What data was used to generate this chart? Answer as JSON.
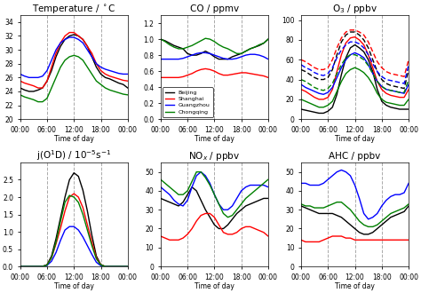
{
  "titles": [
    "Temperature / $\\degree$C",
    "CO / ppmv",
    "O$_3$ / ppbv",
    "j(O$^1$D) / 10$^{-5}$s$^{-1}$",
    "NO$_x$ / ppbv",
    "AHC / ppbv"
  ],
  "colors": [
    "black",
    "red",
    "blue",
    "green"
  ],
  "cities": [
    "Beijing",
    "Shanghai",
    "Guangzhou",
    "Chongqing"
  ],
  "time_points": 25,
  "xlim": [
    0,
    24
  ],
  "xticks": [
    0,
    6,
    12,
    18,
    24
  ],
  "xticklabels": [
    "00:00",
    "06:00",
    "12:00",
    "18:00",
    "00:00"
  ],
  "vlines": [
    6,
    12,
    18
  ],
  "temp": {
    "ylim": [
      20,
      35
    ],
    "yticks": [
      20,
      22,
      24,
      26,
      28,
      30,
      32,
      34
    ],
    "beijing": [
      24.5,
      24.2,
      24.0,
      24.0,
      24.2,
      24.5,
      25.5,
      27.0,
      29.0,
      30.5,
      31.5,
      32.0,
      32.2,
      32.0,
      31.5,
      30.5,
      29.0,
      27.5,
      26.5,
      26.0,
      25.8,
      25.5,
      25.2,
      25.0,
      24.5
    ],
    "shanghai": [
      25.5,
      25.2,
      25.0,
      24.8,
      24.5,
      24.5,
      25.5,
      27.5,
      29.5,
      31.0,
      32.0,
      32.5,
      32.5,
      32.0,
      31.5,
      30.5,
      29.5,
      28.0,
      27.0,
      26.5,
      26.2,
      26.0,
      25.8,
      25.6,
      25.5
    ],
    "guangzhou": [
      26.5,
      26.2,
      26.0,
      26.0,
      26.0,
      26.2,
      27.0,
      28.5,
      30.0,
      31.0,
      31.5,
      31.8,
      31.8,
      31.5,
      31.0,
      30.0,
      29.0,
      28.0,
      27.5,
      27.2,
      27.0,
      26.8,
      26.6,
      26.5,
      26.5
    ],
    "chongqing": [
      23.5,
      23.2,
      23.0,
      22.8,
      22.5,
      22.5,
      23.0,
      24.5,
      26.0,
      27.5,
      28.5,
      29.0,
      29.2,
      29.0,
      28.5,
      27.5,
      26.5,
      25.5,
      25.0,
      24.5,
      24.2,
      24.0,
      23.8,
      23.6,
      23.5
    ]
  },
  "co": {
    "ylim": [
      0.0,
      1.3
    ],
    "yticks": [
      0.0,
      0.2,
      0.4,
      0.6,
      0.8,
      1.0,
      1.2
    ],
    "beijing": [
      1.0,
      0.98,
      0.95,
      0.92,
      0.9,
      0.88,
      0.82,
      0.8,
      0.8,
      0.82,
      0.85,
      0.82,
      0.78,
      0.75,
      0.75,
      0.75,
      0.78,
      0.8,
      0.82,
      0.85,
      0.88,
      0.9,
      0.92,
      0.95,
      1.0
    ],
    "shanghai": [
      0.52,
      0.52,
      0.52,
      0.52,
      0.52,
      0.53,
      0.55,
      0.57,
      0.6,
      0.62,
      0.63,
      0.62,
      0.6,
      0.57,
      0.55,
      0.55,
      0.56,
      0.57,
      0.58,
      0.58,
      0.57,
      0.56,
      0.55,
      0.54,
      0.52
    ],
    "guangzhou": [
      0.75,
      0.75,
      0.75,
      0.75,
      0.75,
      0.76,
      0.78,
      0.8,
      0.82,
      0.83,
      0.83,
      0.82,
      0.8,
      0.78,
      0.76,
      0.75,
      0.75,
      0.76,
      0.78,
      0.8,
      0.81,
      0.81,
      0.8,
      0.78,
      0.75
    ],
    "chongqing": [
      1.0,
      0.97,
      0.93,
      0.9,
      0.88,
      0.88,
      0.9,
      0.92,
      0.95,
      0.98,
      1.01,
      1.0,
      0.97,
      0.93,
      0.9,
      0.88,
      0.85,
      0.82,
      0.82,
      0.85,
      0.88,
      0.9,
      0.93,
      0.95,
      1.0
    ]
  },
  "o3": {
    "ylim": [
      0,
      105
    ],
    "yticks": [
      0,
      20,
      40,
      60,
      80,
      100
    ],
    "beijing_solid": [
      10,
      9,
      8,
      7,
      6,
      6,
      8,
      12,
      25,
      45,
      62,
      72,
      75,
      72,
      68,
      60,
      48,
      30,
      18,
      14,
      12,
      11,
      10,
      10,
      10
    ],
    "beijing_dashed": [
      50,
      48,
      45,
      42,
      40,
      40,
      42,
      50,
      65,
      78,
      85,
      88,
      88,
      85,
      80,
      72,
      60,
      48,
      40,
      36,
      34,
      33,
      32,
      31,
      50
    ],
    "shanghai_solid": [
      30,
      28,
      25,
      22,
      20,
      20,
      22,
      30,
      48,
      65,
      77,
      82,
      83,
      80,
      75,
      65,
      52,
      38,
      30,
      26,
      24,
      23,
      22,
      22,
      30
    ],
    "shanghai_dashed": [
      60,
      58,
      55,
      52,
      50,
      50,
      52,
      60,
      72,
      82,
      88,
      90,
      90,
      88,
      85,
      78,
      68,
      58,
      52,
      48,
      46,
      45,
      44,
      43,
      60
    ],
    "guangzhou_solid": [
      35,
      32,
      30,
      28,
      26,
      25,
      27,
      32,
      42,
      52,
      60,
      65,
      67,
      65,
      62,
      55,
      46,
      38,
      33,
      30,
      29,
      28,
      27,
      26,
      35
    ],
    "guangzhou_dashed": [
      55,
      52,
      50,
      47,
      45,
      44,
      46,
      52,
      62,
      70,
      75,
      78,
      78,
      76,
      72,
      65,
      56,
      48,
      43,
      40,
      39,
      38,
      37,
      36,
      55
    ],
    "chongqing_solid": [
      20,
      18,
      16,
      14,
      12,
      12,
      14,
      18,
      28,
      38,
      46,
      50,
      52,
      50,
      47,
      42,
      35,
      26,
      20,
      17,
      16,
      15,
      14,
      14,
      20
    ],
    "chongqing_dashed": [
      40,
      38,
      35,
      32,
      30,
      29,
      31,
      36,
      46,
      55,
      62,
      65,
      65,
      63,
      60,
      54,
      46,
      38,
      33,
      30,
      29,
      28,
      27,
      27,
      40
    ]
  },
  "jO1D": {
    "ylim": [
      0.0,
      3.0
    ],
    "yticks": [
      0.0,
      0.5,
      1.0,
      1.5,
      2.0,
      2.5
    ],
    "beijing": [
      0,
      0,
      0,
      0,
      0,
      0,
      0.05,
      0.3,
      0.8,
      1.4,
      2.0,
      2.5,
      2.7,
      2.6,
      2.2,
      1.6,
      0.9,
      0.3,
      0.05,
      0,
      0,
      0,
      0,
      0,
      0
    ],
    "shanghai": [
      0,
      0,
      0,
      0,
      0,
      0,
      0.04,
      0.25,
      0.65,
      1.1,
      1.6,
      2.0,
      2.1,
      2.0,
      1.7,
      1.2,
      0.7,
      0.25,
      0.04,
      0,
      0,
      0,
      0,
      0,
      0
    ],
    "guangzhou": [
      0,
      0,
      0,
      0,
      0,
      0,
      0.03,
      0.15,
      0.4,
      0.75,
      1.05,
      1.15,
      1.15,
      1.05,
      0.85,
      0.6,
      0.35,
      0.12,
      0.02,
      0,
      0,
      0,
      0,
      0,
      0
    ],
    "chongqing": [
      0,
      0,
      0,
      0,
      0,
      0,
      0.04,
      0.25,
      0.7,
      1.3,
      1.85,
      2.05,
      2.0,
      1.85,
      1.5,
      1.05,
      0.6,
      0.22,
      0.04,
      0,
      0,
      0,
      0,
      0,
      0
    ]
  },
  "nox": {
    "ylim": [
      0,
      55
    ],
    "yticks": [
      0,
      10,
      20,
      30,
      40,
      50
    ],
    "beijing": [
      36,
      35,
      34,
      33,
      32,
      34,
      38,
      42,
      40,
      35,
      30,
      26,
      22,
      20,
      20,
      22,
      25,
      28,
      30,
      32,
      33,
      34,
      35,
      36,
      36
    ],
    "shanghai": [
      16,
      15,
      14,
      14,
      14,
      15,
      17,
      20,
      24,
      27,
      28,
      28,
      26,
      22,
      18,
      17,
      17,
      18,
      20,
      21,
      21,
      20,
      19,
      18,
      16
    ],
    "guangzhou": [
      42,
      40,
      38,
      35,
      33,
      32,
      35,
      42,
      48,
      50,
      48,
      44,
      38,
      33,
      30,
      30,
      32,
      36,
      40,
      42,
      43,
      43,
      43,
      43,
      42
    ],
    "chongqing": [
      46,
      44,
      42,
      40,
      38,
      38,
      40,
      45,
      50,
      50,
      47,
      43,
      38,
      33,
      28,
      26,
      27,
      30,
      33,
      36,
      38,
      40,
      42,
      44,
      46
    ]
  },
  "ahc": {
    "ylim": [
      0,
      55
    ],
    "yticks": [
      0,
      10,
      20,
      30,
      40,
      50
    ],
    "beijing": [
      32,
      31,
      30,
      29,
      28,
      28,
      28,
      28,
      27,
      26,
      24,
      22,
      20,
      18,
      17,
      17,
      18,
      20,
      22,
      24,
      26,
      27,
      28,
      29,
      32
    ],
    "shanghai": [
      14,
      13,
      13,
      13,
      13,
      14,
      15,
      16,
      16,
      16,
      15,
      15,
      14,
      14,
      14,
      14,
      14,
      14,
      14,
      14,
      14,
      14,
      14,
      14,
      14
    ],
    "guangzhou": [
      44,
      44,
      43,
      43,
      43,
      44,
      46,
      48,
      50,
      51,
      50,
      48,
      43,
      36,
      28,
      25,
      26,
      28,
      32,
      35,
      37,
      38,
      38,
      39,
      44
    ],
    "chongqing": [
      33,
      32,
      32,
      31,
      31,
      31,
      32,
      33,
      34,
      34,
      32,
      30,
      27,
      24,
      22,
      21,
      21,
      22,
      24,
      26,
      28,
      29,
      30,
      31,
      33
    ]
  }
}
